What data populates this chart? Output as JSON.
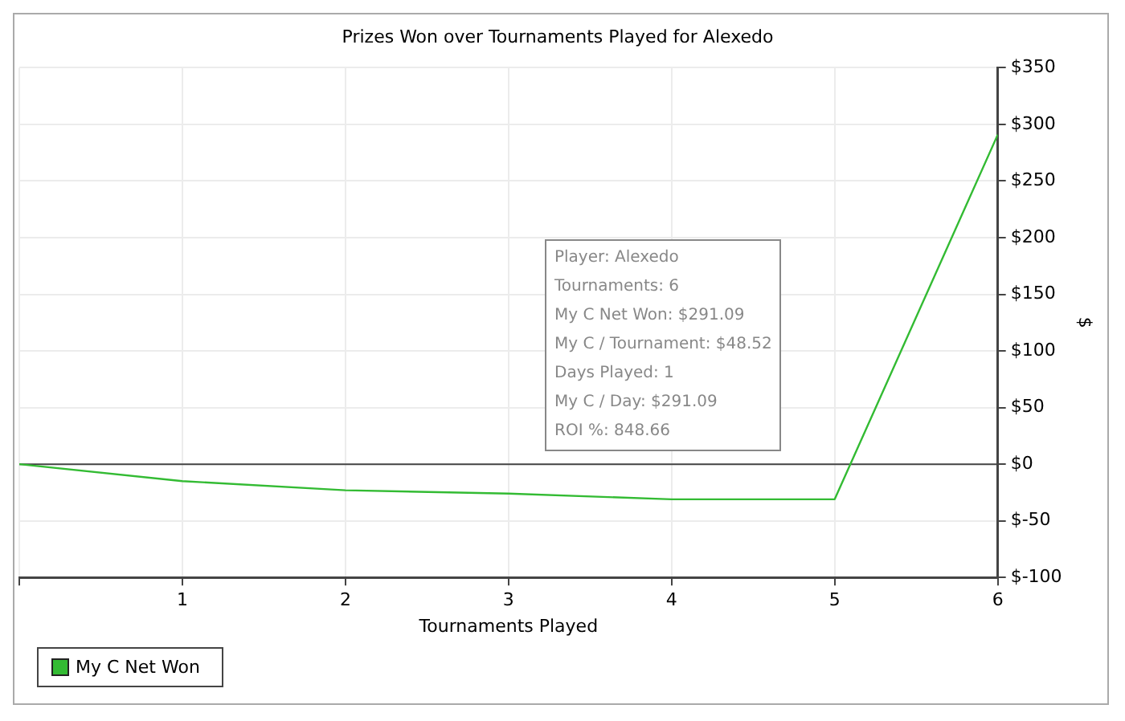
{
  "chart_data": {
    "type": "line",
    "title": "Prizes Won over Tournaments Played for Alexedo",
    "xlabel": "Tournaments Played",
    "ylabel": "$",
    "x": [
      0,
      1,
      2,
      3,
      4,
      5,
      6
    ],
    "series": [
      {
        "name": "My C Net Won",
        "color": "#33bb33",
        "values": [
          0,
          -15,
          -23,
          -26,
          -31,
          -31,
          291
        ]
      }
    ],
    "xlim": [
      0,
      6
    ],
    "xticks": [
      {
        "value": 0,
        "label": null
      },
      1,
      2,
      3,
      4,
      5,
      6
    ],
    "ylim": [
      -100,
      350
    ],
    "yticks": [
      {
        "value": -100,
        "label": "$-100"
      },
      {
        "value": -50,
        "label": "$-50"
      },
      {
        "value": 0,
        "label": "$0"
      },
      {
        "value": 50,
        "label": "$50"
      },
      {
        "value": 100,
        "label": "$100"
      },
      {
        "value": 150,
        "label": "$150"
      },
      {
        "value": 200,
        "label": "$200"
      },
      {
        "value": 250,
        "label": "$250"
      },
      {
        "value": 300,
        "label": "$300"
      },
      {
        "value": 350,
        "label": "$350"
      }
    ],
    "ref_lines": [
      {
        "axis": "y",
        "value": 0,
        "color": "#444444"
      }
    ],
    "annotations": [
      "Player: Alexedo",
      "Tournaments: 6",
      "My C Net Won: $291.09",
      "My C / Tournament: $48.52",
      "Days Played: 1",
      "My C / Day: $291.09",
      "ROI %: 848.66"
    ],
    "grid": true,
    "legend": "bottom left",
    "marker": "none",
    "line_style": "solid"
  }
}
